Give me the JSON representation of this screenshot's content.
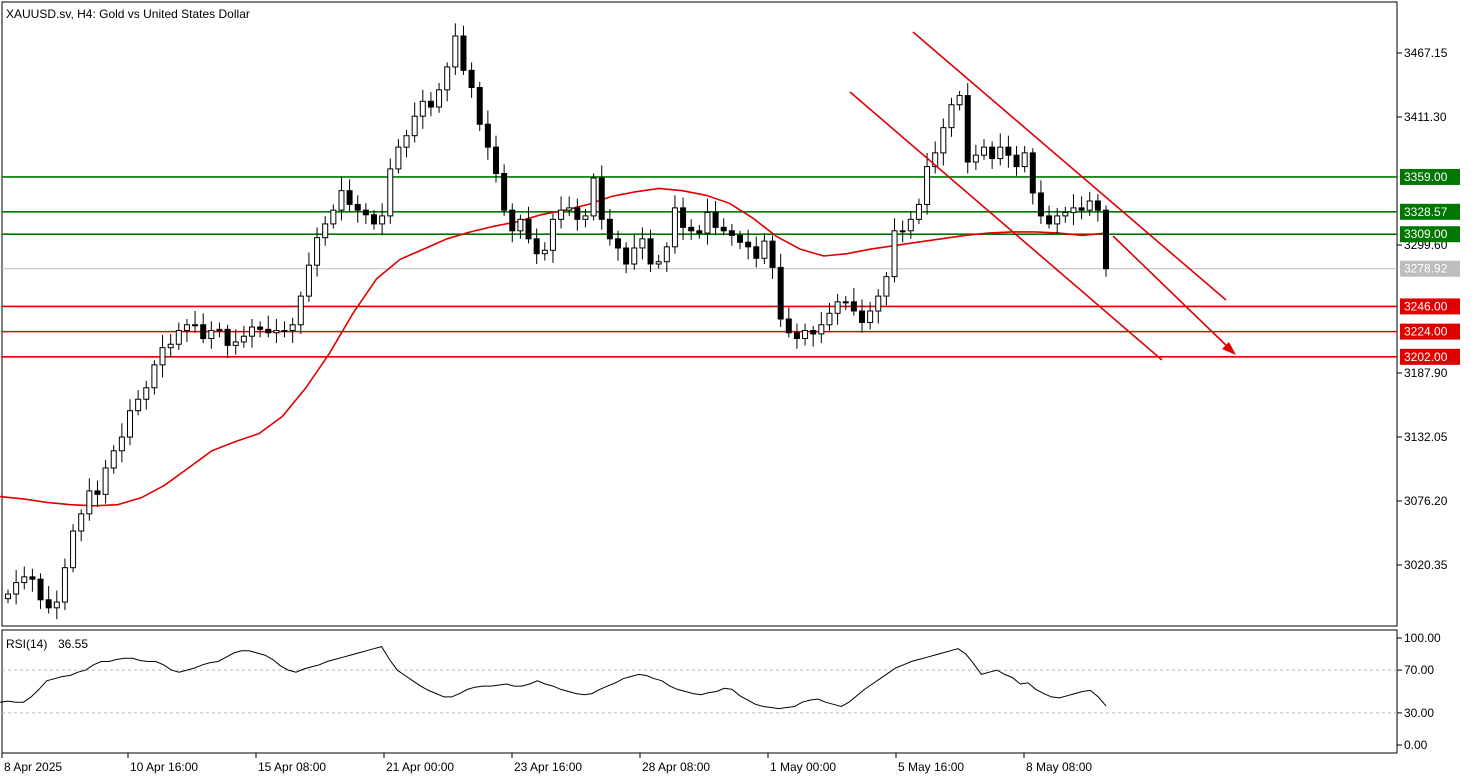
{
  "header": {
    "title": "XAUUSD.sv, H4:  Gold vs United States Dollar"
  },
  "rsi_panel": {
    "label": "RSI(14)",
    "value": "36.55",
    "ticks": [
      "100.00",
      "70.00",
      "30.00",
      "0.00"
    ],
    "levels": [
      70,
      30
    ]
  },
  "colors": {
    "support": "#e00000",
    "resistance": "#007700",
    "ma": "#e00000",
    "channel": "#e00000",
    "current_price": "#bdbdbd"
  },
  "chart_data": [
    {
      "type": "candlestick",
      "title": "XAUUSD.sv, H4:  Gold vs United States Dollar",
      "xlabel": "",
      "ylabel": "",
      "ylim": [
        2965.0,
        3500.0
      ],
      "y_tick_labels": [
        "3467.15",
        "3411.30",
        "3299.60",
        "3187.90",
        "3132.05",
        "3076.20",
        "3020.35"
      ],
      "x_tick_labels": [
        "8 Apr 2025",
        "10 Apr 16:00",
        "15 Apr 08:00",
        "21 Apr 00:00",
        "23 Apr 16:00",
        "28 Apr 08:00",
        "1 May 00:00",
        "5 May 16:00",
        "8 May 08:00"
      ],
      "grid": false,
      "horizontal_levels": [
        {
          "price": 3359.0,
          "label": "3359.00",
          "kind": "resistance"
        },
        {
          "price": 3328.57,
          "label": "3328.57",
          "kind": "resistance"
        },
        {
          "price": 3309.0,
          "label": "3309.00",
          "kind": "resistance"
        },
        {
          "price": 3278.92,
          "label": "3278.92",
          "kind": "current"
        },
        {
          "price": 3246.0,
          "label": "3246.00",
          "kind": "support"
        },
        {
          "price": 3224.0,
          "label": "3224.00",
          "kind": "support"
        },
        {
          "price": 3202.0,
          "label": "3202.00",
          "kind": "support"
        }
      ],
      "close_series": [
        2995,
        3005,
        3010,
        3008,
        2990,
        2983,
        2988,
        3018,
        3050,
        3065,
        3085,
        3082,
        3105,
        3120,
        3132,
        3155,
        3165,
        3175,
        3195,
        3210,
        3213,
        3225,
        3230,
        3230,
        3218,
        3225,
        3226,
        3212,
        3215,
        3220,
        3228,
        3226,
        3223,
        3225,
        3225,
        3230,
        3255,
        3282,
        3306,
        3318,
        3330,
        3347,
        3335,
        3330,
        3326,
        3318,
        3325,
        3366,
        3385,
        3395,
        3412,
        3425,
        3420,
        3435,
        3455,
        3482,
        3452,
        3437,
        3405,
        3385,
        3362,
        3330,
        3312,
        3322,
        3305,
        3292,
        3295,
        3322,
        3330,
        3332,
        3322,
        3325,
        3358,
        3322,
        3305,
        3297,
        3283,
        3297,
        3305,
        3283,
        3285,
        3298,
        3332,
        3315,
        3312,
        3310,
        3328,
        3315,
        3312,
        3308,
        3302,
        3298,
        3288,
        3303,
        3280,
        3235,
        3223,
        3218,
        3225,
        3222,
        3230,
        3240,
        3250,
        3250,
        3242,
        3232,
        3242,
        3255,
        3272,
        3312,
        3312,
        3322,
        3335,
        3368,
        3380,
        3402,
        3422,
        3430,
        3372,
        3378,
        3385,
        3375,
        3385,
        3378,
        3368,
        3380,
        3345,
        3325,
        3318,
        3325,
        3328,
        3332,
        3330,
        3338,
        3330,
        3278.92
      ],
      "ma_series": [
        3080,
        3078,
        3075,
        3073,
        3072,
        3073,
        3079,
        3090,
        3105,
        3120,
        3128,
        3135,
        3150,
        3175,
        3205,
        3240,
        3270,
        3287,
        3296,
        3305,
        3311,
        3316,
        3320,
        3326,
        3330,
        3335,
        3342,
        3346,
        3349,
        3347,
        3343,
        3336,
        3323,
        3307,
        3296,
        3290,
        3292,
        3296,
        3299,
        3302,
        3305,
        3308,
        3310,
        3311,
        3311,
        3310,
        3308,
        3310
      ],
      "rsi_series": [
        40,
        41,
        40,
        40,
        45,
        52,
        60,
        62,
        64,
        65,
        68,
        70,
        75,
        78,
        78,
        80,
        81,
        81,
        79,
        78,
        78,
        75,
        70,
        68,
        70,
        72,
        75,
        77,
        78,
        82,
        86,
        88,
        88,
        86,
        84,
        80,
        74,
        70,
        68,
        71,
        73,
        75,
        78,
        80,
        82,
        84,
        86,
        88,
        90,
        92,
        80,
        70,
        65,
        60,
        55,
        51,
        48,
        45,
        45,
        48,
        52,
        54,
        55,
        55,
        56,
        57,
        55,
        55,
        57,
        60,
        57,
        55,
        52,
        50,
        48,
        47,
        48,
        52,
        55,
        58,
        62,
        64,
        66,
        65,
        62,
        60,
        55,
        52,
        50,
        48,
        47,
        49,
        50,
        53,
        52,
        46,
        42,
        38,
        36,
        35,
        34,
        35,
        36,
        40,
        42,
        43,
        40,
        38,
        36,
        40,
        46,
        52,
        57,
        62,
        67,
        72,
        75,
        78,
        80,
        82,
        84,
        86,
        88,
        90,
        85,
        76,
        66,
        68,
        70,
        66,
        63,
        57,
        58,
        52,
        48,
        45,
        44,
        46,
        48,
        50,
        51,
        45,
        36.55
      ]
    }
  ]
}
